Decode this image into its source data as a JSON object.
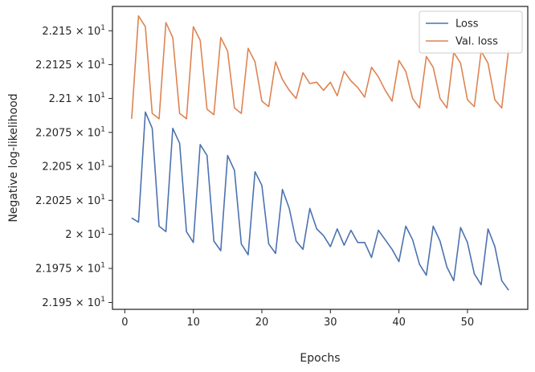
{
  "chart_data": {
    "type": "line",
    "xlabel": "Epochs",
    "ylabel": "Negative log-likelihood",
    "xlim": [
      -1.8,
      58.8
    ],
    "ylim": [
      21.945,
      22.168
    ],
    "yscale": "log",
    "grid": false,
    "legend_position": "top-right",
    "x_ticks": [
      {
        "value": 0,
        "label": "0"
      },
      {
        "value": 10,
        "label": "10"
      },
      {
        "value": 20,
        "label": "20"
      },
      {
        "value": 30,
        "label": "30"
      },
      {
        "value": 40,
        "label": "40"
      },
      {
        "value": 50,
        "label": "50"
      }
    ],
    "y_ticks": [
      {
        "value": 21.95,
        "mantissa": "2.195",
        "exp": "1"
      },
      {
        "value": 21.975,
        "mantissa": "2.1975",
        "exp": "1"
      },
      {
        "value": 22.0,
        "mantissa": "2",
        "exp": "1"
      },
      {
        "value": 22.025,
        "mantissa": "2.2025",
        "exp": "1"
      },
      {
        "value": 22.05,
        "mantissa": "2.205",
        "exp": "1"
      },
      {
        "value": 22.075,
        "mantissa": "2.2075",
        "exp": "1"
      },
      {
        "value": 22.1,
        "mantissa": "2.21",
        "exp": "1"
      },
      {
        "value": 22.125,
        "mantissa": "2.2125",
        "exp": "1"
      },
      {
        "value": 22.15,
        "mantissa": "2.215",
        "exp": "1"
      }
    ],
    "y_tick_times": "×",
    "series": [
      {
        "name": "Loss",
        "color": "#4c72b0",
        "x": [
          1,
          2,
          3,
          4,
          5,
          6,
          7,
          8,
          9,
          10,
          11,
          12,
          13,
          14,
          15,
          16,
          17,
          18,
          19,
          20,
          21,
          22,
          23,
          24,
          25,
          26,
          27,
          28,
          29,
          30,
          31,
          32,
          33,
          34,
          35,
          36,
          37,
          38,
          39,
          40,
          41,
          42,
          43,
          44,
          45,
          46,
          47,
          48,
          49,
          50,
          51,
          52,
          53,
          54,
          55,
          56
        ],
        "values": [
          22.012,
          22.009,
          22.09,
          22.078,
          22.006,
          22.002,
          22.078,
          22.067,
          22.002,
          21.994,
          22.066,
          22.058,
          21.995,
          21.988,
          22.058,
          22.047,
          21.993,
          21.985,
          22.046,
          22.036,
          21.993,
          21.986,
          22.033,
          22.019,
          21.995,
          21.989,
          22.019,
          22.004,
          21.999,
          21.991,
          22.004,
          21.992,
          22.003,
          21.994,
          21.994,
          21.983,
          22.003,
          21.996,
          21.989,
          21.98,
          22.006,
          21.996,
          21.978,
          21.97,
          22.006,
          21.995,
          21.976,
          21.966,
          22.005,
          21.994,
          21.971,
          21.963,
          22.004,
          21.991,
          21.966,
          21.959
        ]
      },
      {
        "name": "Val. loss",
        "color": "#dd8452",
        "x": [
          1,
          2,
          3,
          4,
          5,
          6,
          7,
          8,
          9,
          10,
          11,
          12,
          13,
          14,
          15,
          16,
          17,
          18,
          19,
          20,
          21,
          22,
          23,
          24,
          25,
          26,
          27,
          28,
          29,
          30,
          31,
          32,
          33,
          34,
          35,
          36,
          37,
          38,
          39,
          40,
          41,
          42,
          43,
          44,
          45,
          46,
          47,
          48,
          49,
          50,
          51,
          52,
          53,
          54,
          55,
          56
        ],
        "values": [
          22.085,
          22.161,
          22.153,
          22.089,
          22.085,
          22.156,
          22.145,
          22.089,
          22.085,
          22.153,
          22.143,
          22.092,
          22.088,
          22.145,
          22.135,
          22.093,
          22.089,
          22.137,
          22.127,
          22.098,
          22.094,
          22.127,
          22.114,
          22.106,
          22.1,
          22.119,
          22.111,
          22.112,
          22.106,
          22.112,
          22.102,
          22.12,
          22.113,
          22.108,
          22.101,
          22.123,
          22.116,
          22.106,
          22.098,
          22.128,
          22.12,
          22.1,
          22.093,
          22.131,
          22.123,
          22.1,
          22.093,
          22.134,
          22.126,
          22.099,
          22.094,
          22.135,
          22.126,
          22.099,
          22.093,
          22.136
        ]
      }
    ]
  }
}
